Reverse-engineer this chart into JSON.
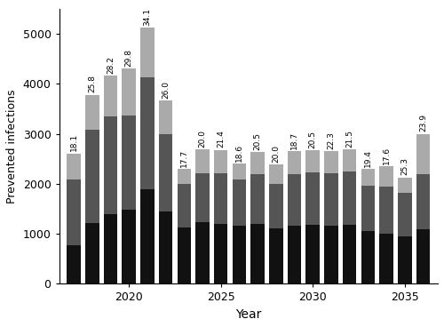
{
  "years": [
    2017,
    2018,
    2019,
    2020,
    2021,
    2022,
    2023,
    2024,
    2025,
    2026,
    2027,
    2028,
    2029,
    2030,
    2031,
    2032,
    2033,
    2034,
    2035,
    2036
  ],
  "children": [
    780,
    1220,
    1390,
    1490,
    1900,
    1440,
    1120,
    1230,
    1200,
    1160,
    1200,
    1110,
    1160,
    1180,
    1170,
    1190,
    1060,
    1010,
    950,
    1100
  ],
  "young_adults": [
    1300,
    1870,
    1960,
    1870,
    2230,
    1560,
    870,
    990,
    1010,
    920,
    1000,
    880,
    1040,
    1050,
    1040,
    1050,
    895,
    940,
    870,
    1100
  ],
  "elderly": [
    530,
    690,
    820,
    950,
    1000,
    670,
    310,
    470,
    470,
    330,
    430,
    395,
    460,
    440,
    440,
    445,
    340,
    400,
    310,
    800
  ],
  "percentages": [
    "18.1",
    "25.8",
    "28.2",
    "29.8",
    "34.1",
    "26.0",
    "17.7",
    "20.0",
    "21.4",
    "18.6",
    "20.5",
    "20.0",
    "18.7",
    "20.5",
    "22.3",
    "21.5",
    "19.4",
    "17.6",
    "25.3",
    "23.9"
  ],
  "ylabel": "Prevented infections",
  "xlabel": "Year",
  "ylim": [
    0,
    5500
  ],
  "yticks": [
    0,
    1000,
    2000,
    3000,
    4000,
    5000
  ],
  "color_children": "#111111",
  "color_young_adults": "#555555",
  "color_elderly": "#aaaaaa",
  "bar_width": 0.75,
  "figsize": [
    5.0,
    3.68
  ],
  "dpi": 100
}
